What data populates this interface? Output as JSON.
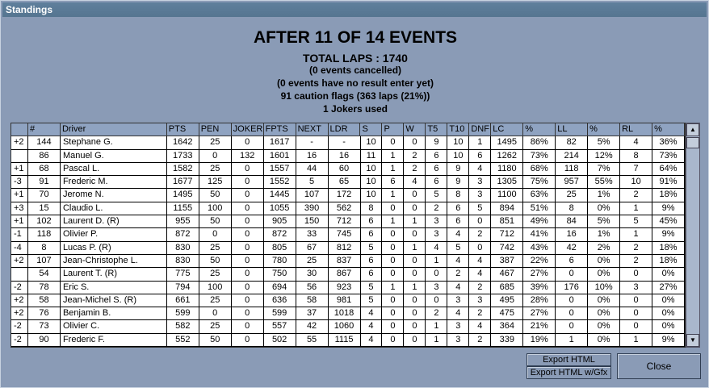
{
  "window": {
    "title": "Standings"
  },
  "header": {
    "title": "AFTER 11 OF 14 EVENTS",
    "total_laps": "TOTAL LAPS : 1740",
    "cancelled": "(0 events cancelled)",
    "no_result": "(0 events have no result enter yet)",
    "cautions": "91 caution flags (363 laps (21%))",
    "jokers": "1 Jokers used"
  },
  "table": {
    "columns": [
      "",
      "#",
      "Driver",
      "PTS",
      "PEN",
      "JOKER",
      "FPTS",
      "NEXT",
      "LDR",
      "S",
      "P",
      "W",
      "T5",
      "T10",
      "DNF",
      "LC",
      "%",
      "LL",
      "%",
      "RL",
      "%"
    ],
    "rows": [
      [
        "+2",
        "144",
        "Stephane G.",
        "1642",
        "25",
        "0",
        "1617",
        "-",
        "-",
        "10",
        "0",
        "0",
        "9",
        "10",
        "1",
        "1495",
        "86%",
        "82",
        "5%",
        "4",
        "36%"
      ],
      [
        "",
        "86",
        "Manuel G.",
        "1733",
        "0",
        "132",
        "1601",
        "16",
        "16",
        "11",
        "1",
        "2",
        "6",
        "10",
        "6",
        "1262",
        "73%",
        "214",
        "12%",
        "8",
        "73%"
      ],
      [
        "+1",
        "68",
        "Pascal L.",
        "1582",
        "25",
        "0",
        "1557",
        "44",
        "60",
        "10",
        "1",
        "2",
        "6",
        "9",
        "4",
        "1180",
        "68%",
        "118",
        "7%",
        "7",
        "64%"
      ],
      [
        "-3",
        "91",
        "Frederic M.",
        "1677",
        "125",
        "0",
        "1552",
        "5",
        "65",
        "10",
        "6",
        "4",
        "6",
        "9",
        "3",
        "1305",
        "75%",
        "957",
        "55%",
        "10",
        "91%"
      ],
      [
        "+1",
        "70",
        "Jerome N.",
        "1495",
        "50",
        "0",
        "1445",
        "107",
        "172",
        "10",
        "1",
        "0",
        "5",
        "8",
        "3",
        "1100",
        "63%",
        "25",
        "1%",
        "2",
        "18%"
      ],
      [
        "+3",
        "15",
        "Claudio L.",
        "1155",
        "100",
        "0",
        "1055",
        "390",
        "562",
        "8",
        "0",
        "0",
        "2",
        "6",
        "5",
        "894",
        "51%",
        "8",
        "0%",
        "1",
        "9%"
      ],
      [
        "+1",
        "102",
        "Laurent D. (R)",
        "955",
        "50",
        "0",
        "905",
        "150",
        "712",
        "6",
        "1",
        "1",
        "3",
        "6",
        "0",
        "851",
        "49%",
        "84",
        "5%",
        "5",
        "45%"
      ],
      [
        "-1",
        "118",
        "Olivier P.",
        "872",
        "0",
        "0",
        "872",
        "33",
        "745",
        "6",
        "0",
        "0",
        "3",
        "4",
        "2",
        "712",
        "41%",
        "16",
        "1%",
        "1",
        "9%"
      ],
      [
        "-4",
        "8",
        "Lucas P. (R)",
        "830",
        "25",
        "0",
        "805",
        "67",
        "812",
        "5",
        "0",
        "1",
        "4",
        "5",
        "0",
        "742",
        "43%",
        "42",
        "2%",
        "2",
        "18%"
      ],
      [
        "+2",
        "107",
        "Jean-Christophe L.",
        "830",
        "50",
        "0",
        "780",
        "25",
        "837",
        "6",
        "0",
        "0",
        "1",
        "4",
        "4",
        "387",
        "22%",
        "6",
        "0%",
        "2",
        "18%"
      ],
      [
        "",
        "54",
        "Laurent T. (R)",
        "775",
        "25",
        "0",
        "750",
        "30",
        "867",
        "6",
        "0",
        "0",
        "0",
        "2",
        "4",
        "467",
        "27%",
        "0",
        "0%",
        "0",
        "0%"
      ],
      [
        "-2",
        "78",
        "Eric S.",
        "794",
        "100",
        "0",
        "694",
        "56",
        "923",
        "5",
        "1",
        "1",
        "3",
        "4",
        "2",
        "685",
        "39%",
        "176",
        "10%",
        "3",
        "27%"
      ],
      [
        "+2",
        "58",
        "Jean-Michel S. (R)",
        "661",
        "25",
        "0",
        "636",
        "58",
        "981",
        "5",
        "0",
        "0",
        "0",
        "3",
        "3",
        "495",
        "28%",
        "0",
        "0%",
        "0",
        "0%"
      ],
      [
        "+2",
        "76",
        "Benjamin B.",
        "599",
        "0",
        "0",
        "599",
        "37",
        "1018",
        "4",
        "0",
        "0",
        "2",
        "4",
        "2",
        "475",
        "27%",
        "0",
        "0%",
        "0",
        "0%"
      ],
      [
        "-2",
        "73",
        "Olivier C.",
        "582",
        "25",
        "0",
        "557",
        "42",
        "1060",
        "4",
        "0",
        "0",
        "1",
        "3",
        "4",
        "364",
        "21%",
        "0",
        "0%",
        "0",
        "0%"
      ],
      [
        "-2",
        "90",
        "Frederic F.",
        "552",
        "50",
        "0",
        "502",
        "55",
        "1115",
        "4",
        "0",
        "0",
        "1",
        "3",
        "2",
        "339",
        "19%",
        "1",
        "0%",
        "1",
        "9%"
      ]
    ]
  },
  "buttons": {
    "export_html": "Export HTML",
    "export_html_gfx": "Export HTML w/Gfx",
    "close": "Close"
  },
  "scrollbar": {
    "up": "▲",
    "down": "▼"
  }
}
